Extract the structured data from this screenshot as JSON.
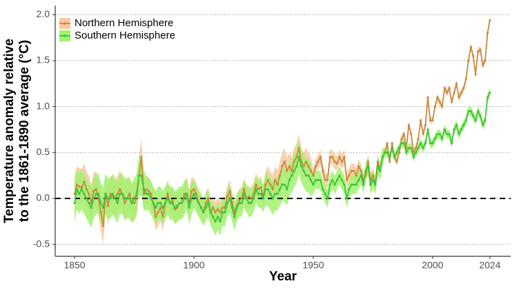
{
  "chart_data": {
    "type": "line",
    "x_label": "Year",
    "y_label": [
      "Temperature anomaly relative",
      "to the 1861-1890 average (°C)"
    ],
    "x": [
      1850,
      1851,
      1852,
      1853,
      1854,
      1855,
      1856,
      1857,
      1858,
      1859,
      1860,
      1861,
      1862,
      1863,
      1864,
      1865,
      1866,
      1867,
      1868,
      1869,
      1870,
      1871,
      1872,
      1873,
      1874,
      1875,
      1876,
      1877,
      1878,
      1879,
      1880,
      1881,
      1882,
      1883,
      1884,
      1885,
      1886,
      1887,
      1888,
      1889,
      1890,
      1891,
      1892,
      1893,
      1894,
      1895,
      1896,
      1897,
      1898,
      1899,
      1900,
      1901,
      1902,
      1903,
      1904,
      1905,
      1906,
      1907,
      1908,
      1909,
      1910,
      1911,
      1912,
      1913,
      1914,
      1915,
      1916,
      1917,
      1918,
      1919,
      1920,
      1921,
      1922,
      1923,
      1924,
      1925,
      1926,
      1927,
      1928,
      1929,
      1930,
      1931,
      1932,
      1933,
      1934,
      1935,
      1936,
      1937,
      1938,
      1939,
      1940,
      1941,
      1942,
      1943,
      1944,
      1945,
      1946,
      1947,
      1948,
      1949,
      1950,
      1951,
      1952,
      1953,
      1954,
      1955,
      1956,
      1957,
      1958,
      1959,
      1960,
      1961,
      1962,
      1963,
      1964,
      1965,
      1966,
      1967,
      1968,
      1969,
      1970,
      1971,
      1972,
      1973,
      1974,
      1975,
      1976,
      1977,
      1978,
      1979,
      1980,
      1981,
      1982,
      1983,
      1984,
      1985,
      1986,
      1987,
      1988,
      1989,
      1990,
      1991,
      1992,
      1993,
      1994,
      1995,
      1996,
      1997,
      1998,
      1999,
      2000,
      2001,
      2002,
      2003,
      2004,
      2005,
      2006,
      2007,
      2008,
      2009,
      2010,
      2011,
      2012,
      2013,
      2014,
      2015,
      2016,
      2017,
      2018,
      2019,
      2020,
      2021,
      2022,
      2023,
      2024
    ],
    "series": [
      {
        "name": "Northern Hemisphere",
        "color": "#c98840",
        "band_color": "#f7c9a0",
        "values": [
          0.05,
          0.15,
          0.13,
          0.12,
          0.18,
          0.1,
          0.05,
          -0.05,
          0.08,
          0.1,
          0.0,
          -0.15,
          -0.3,
          0.05,
          -0.08,
          0.05,
          0.02,
          0.0,
          0.05,
          0.1,
          0.05,
          -0.05,
          0.0,
          0.05,
          -0.05,
          -0.05,
          0.0,
          0.25,
          0.45,
          0.05,
          0.1,
          0.08,
          0.05,
          -0.05,
          -0.2,
          -0.15,
          -0.1,
          -0.2,
          -0.05,
          0.05,
          -0.05,
          -0.02,
          -0.12,
          -0.1,
          -0.05,
          -0.05,
          0.05,
          0.05,
          -0.05,
          0.08,
          0.1,
          0.05,
          -0.05,
          -0.1,
          -0.15,
          -0.05,
          0.0,
          -0.15,
          -0.1,
          -0.15,
          -0.12,
          -0.15,
          -0.1,
          -0.1,
          0.02,
          0.08,
          -0.05,
          -0.15,
          -0.08,
          -0.02,
          0.0,
          0.1,
          0.0,
          0.02,
          0.0,
          0.05,
          0.15,
          0.1,
          0.12,
          0.02,
          0.15,
          0.2,
          0.15,
          0.1,
          0.2,
          0.15,
          0.25,
          0.35,
          0.4,
          0.3,
          0.35,
          0.3,
          0.4,
          0.45,
          0.55,
          0.4,
          0.35,
          0.4,
          0.35,
          0.3,
          0.25,
          0.35,
          0.4,
          0.45,
          0.3,
          0.2,
          0.2,
          0.45,
          0.45,
          0.4,
          0.38,
          0.45,
          0.4,
          0.45,
          0.2,
          0.25,
          0.3,
          0.3,
          0.25,
          0.35,
          0.3,
          0.2,
          0.25,
          0.4,
          0.2,
          0.25,
          0.15,
          0.4,
          0.3,
          0.45,
          0.5,
          0.6,
          0.4,
          0.6,
          0.45,
          0.4,
          0.5,
          0.65,
          0.7,
          0.55,
          0.8,
          0.7,
          0.5,
          0.55,
          0.65,
          0.85,
          0.7,
          0.8,
          1.1,
          0.85,
          0.85,
          1.0,
          1.1,
          1.05,
          1.0,
          1.2,
          1.15,
          1.2,
          1.05,
          1.15,
          1.25,
          1.1,
          1.15,
          1.2,
          1.3,
          1.5,
          1.65,
          1.55,
          1.35,
          1.6,
          1.62,
          1.45,
          1.5,
          1.8,
          1.94
        ],
        "uncertainty": [
          0.2,
          0.2,
          0.2,
          0.2,
          0.2,
          0.2,
          0.2,
          0.2,
          0.2,
          0.2,
          0.2,
          0.2,
          0.2,
          0.2,
          0.2,
          0.2,
          0.2,
          0.2,
          0.2,
          0.2,
          0.2,
          0.2,
          0.2,
          0.2,
          0.2,
          0.2,
          0.2,
          0.2,
          0.2,
          0.2,
          0.15,
          0.15,
          0.15,
          0.15,
          0.15,
          0.15,
          0.15,
          0.15,
          0.15,
          0.15,
          0.15,
          0.15,
          0.15,
          0.15,
          0.15,
          0.15,
          0.15,
          0.15,
          0.15,
          0.15,
          0.12,
          0.12,
          0.12,
          0.12,
          0.12,
          0.12,
          0.12,
          0.12,
          0.12,
          0.12,
          0.12,
          0.12,
          0.12,
          0.12,
          0.12,
          0.12,
          0.12,
          0.12,
          0.12,
          0.12,
          0.12,
          0.12,
          0.12,
          0.12,
          0.12,
          0.12,
          0.12,
          0.12,
          0.12,
          0.12,
          0.15,
          0.15,
          0.15,
          0.15,
          0.15,
          0.15,
          0.15,
          0.15,
          0.15,
          0.15,
          0.15,
          0.15,
          0.15,
          0.15,
          0.15,
          0.15,
          0.15,
          0.15,
          0.15,
          0.15,
          0.08,
          0.08,
          0.08,
          0.08,
          0.08,
          0.08,
          0.08,
          0.08,
          0.08,
          0.08,
          0.08,
          0.08,
          0.08,
          0.08,
          0.08,
          0.08,
          0.08,
          0.08,
          0.08,
          0.08,
          0.08,
          0.08,
          0.08,
          0.08,
          0.08,
          0.08,
          0.08,
          0.08,
          0.08,
          0.08,
          0.04,
          0.04,
          0.04,
          0.04,
          0.04,
          0.04,
          0.04,
          0.04,
          0.04,
          0.04,
          0.04,
          0.04,
          0.04,
          0.04,
          0.04,
          0.04,
          0.04,
          0.04,
          0.04,
          0.04,
          0.04,
          0.04,
          0.04,
          0.04,
          0.04,
          0.04,
          0.04,
          0.04,
          0.04,
          0.04,
          0.04,
          0.04,
          0.04,
          0.04,
          0.04,
          0.04,
          0.04,
          0.04,
          0.04,
          0.04,
          0.04,
          0.04,
          0.04,
          0.04,
          0.04
        ]
      },
      {
        "name": "Southern Hemisphere",
        "color": "#3cc43c",
        "band_color": "#a2f26e",
        "values": [
          -0.05,
          0.1,
          0.05,
          0.1,
          0.05,
          0.0,
          -0.05,
          -0.1,
          0.0,
          0.05,
          0.05,
          -0.05,
          -0.1,
          0.05,
          0.0,
          0.0,
          0.05,
          0.0,
          -0.05,
          0.05,
          0.05,
          0.0,
          0.0,
          0.0,
          -0.05,
          0.0,
          0.05,
          0.25,
          0.25,
          0.1,
          0.05,
          0.05,
          0.0,
          -0.05,
          -0.1,
          -0.05,
          -0.05,
          -0.1,
          -0.05,
          0.0,
          -0.05,
          -0.05,
          -0.1,
          -0.08,
          -0.05,
          -0.05,
          0.0,
          0.05,
          -0.1,
          0.0,
          0.05,
          0.0,
          -0.05,
          -0.1,
          -0.15,
          -0.1,
          -0.05,
          -0.15,
          -0.2,
          -0.25,
          -0.2,
          -0.25,
          -0.15,
          -0.15,
          -0.05,
          0.0,
          -0.1,
          -0.2,
          -0.1,
          -0.05,
          -0.05,
          0.05,
          0.0,
          -0.05,
          -0.05,
          0.0,
          0.1,
          0.05,
          0.05,
          0.0,
          0.1,
          0.1,
          0.05,
          0.0,
          0.05,
          0.05,
          0.1,
          0.15,
          0.15,
          0.1,
          0.2,
          0.25,
          0.3,
          0.35,
          0.45,
          0.35,
          0.3,
          0.25,
          0.25,
          0.2,
          0.15,
          0.2,
          0.2,
          0.2,
          0.1,
          0.05,
          0.0,
          0.15,
          0.2,
          0.15,
          0.2,
          0.25,
          0.2,
          0.15,
          0.0,
          0.1,
          0.15,
          0.15,
          0.15,
          0.2,
          0.25,
          0.15,
          0.3,
          0.35,
          0.15,
          0.2,
          0.15,
          0.35,
          0.3,
          0.45,
          0.5,
          0.5,
          0.45,
          0.55,
          0.45,
          0.5,
          0.55,
          0.6,
          0.6,
          0.5,
          0.55,
          0.55,
          0.45,
          0.5,
          0.55,
          0.6,
          0.55,
          0.6,
          0.75,
          0.6,
          0.6,
          0.65,
          0.7,
          0.7,
          0.65,
          0.75,
          0.7,
          0.7,
          0.6,
          0.75,
          0.8,
          0.7,
          0.75,
          0.8,
          0.85,
          0.95,
          0.95,
          0.9,
          0.85,
          0.95,
          0.9,
          0.8,
          0.85,
          1.1,
          1.15
        ],
        "uncertainty": [
          0.22,
          0.22,
          0.22,
          0.22,
          0.22,
          0.22,
          0.22,
          0.22,
          0.22,
          0.22,
          0.22,
          0.22,
          0.22,
          0.22,
          0.22,
          0.22,
          0.22,
          0.22,
          0.22,
          0.22,
          0.22,
          0.22,
          0.22,
          0.22,
          0.22,
          0.22,
          0.22,
          0.22,
          0.22,
          0.22,
          0.18,
          0.18,
          0.18,
          0.18,
          0.18,
          0.18,
          0.18,
          0.18,
          0.18,
          0.18,
          0.18,
          0.18,
          0.18,
          0.18,
          0.18,
          0.18,
          0.18,
          0.18,
          0.18,
          0.18,
          0.15,
          0.15,
          0.15,
          0.15,
          0.15,
          0.15,
          0.15,
          0.15,
          0.15,
          0.15,
          0.15,
          0.15,
          0.15,
          0.15,
          0.15,
          0.15,
          0.15,
          0.15,
          0.15,
          0.15,
          0.15,
          0.15,
          0.15,
          0.15,
          0.15,
          0.15,
          0.15,
          0.15,
          0.15,
          0.15,
          0.18,
          0.18,
          0.18,
          0.18,
          0.18,
          0.18,
          0.18,
          0.18,
          0.18,
          0.18,
          0.18,
          0.18,
          0.18,
          0.18,
          0.18,
          0.18,
          0.18,
          0.18,
          0.18,
          0.18,
          0.1,
          0.1,
          0.1,
          0.1,
          0.1,
          0.1,
          0.1,
          0.1,
          0.1,
          0.1,
          0.1,
          0.1,
          0.1,
          0.1,
          0.1,
          0.1,
          0.1,
          0.1,
          0.1,
          0.1,
          0.1,
          0.1,
          0.1,
          0.1,
          0.1,
          0.1,
          0.1,
          0.1,
          0.1,
          0.1,
          0.05,
          0.05,
          0.05,
          0.05,
          0.05,
          0.05,
          0.05,
          0.05,
          0.05,
          0.05,
          0.05,
          0.05,
          0.05,
          0.05,
          0.05,
          0.05,
          0.05,
          0.05,
          0.05,
          0.05,
          0.05,
          0.05,
          0.05,
          0.05,
          0.05,
          0.05,
          0.05,
          0.05,
          0.05,
          0.05,
          0.05,
          0.05,
          0.05,
          0.05,
          0.05,
          0.05,
          0.05,
          0.05,
          0.05,
          0.05,
          0.05,
          0.05,
          0.05,
          0.05,
          0.05
        ]
      }
    ],
    "xlim": [
      1841.9,
      2032.7
    ],
    "ylim": [
      -0.63,
      2.1
    ],
    "xticks": [
      1850,
      1900,
      1950,
      2000,
      2024
    ],
    "yticks": [
      -0.5,
      {
        "value": 0,
        "label": "0.0"
      },
      0.5,
      {
        "value": 1,
        "label": "1.0"
      },
      1.5,
      {
        "value": 2,
        "label": "2.0"
      }
    ],
    "grid": true,
    "reference_line": 0,
    "legend": "top-left"
  }
}
